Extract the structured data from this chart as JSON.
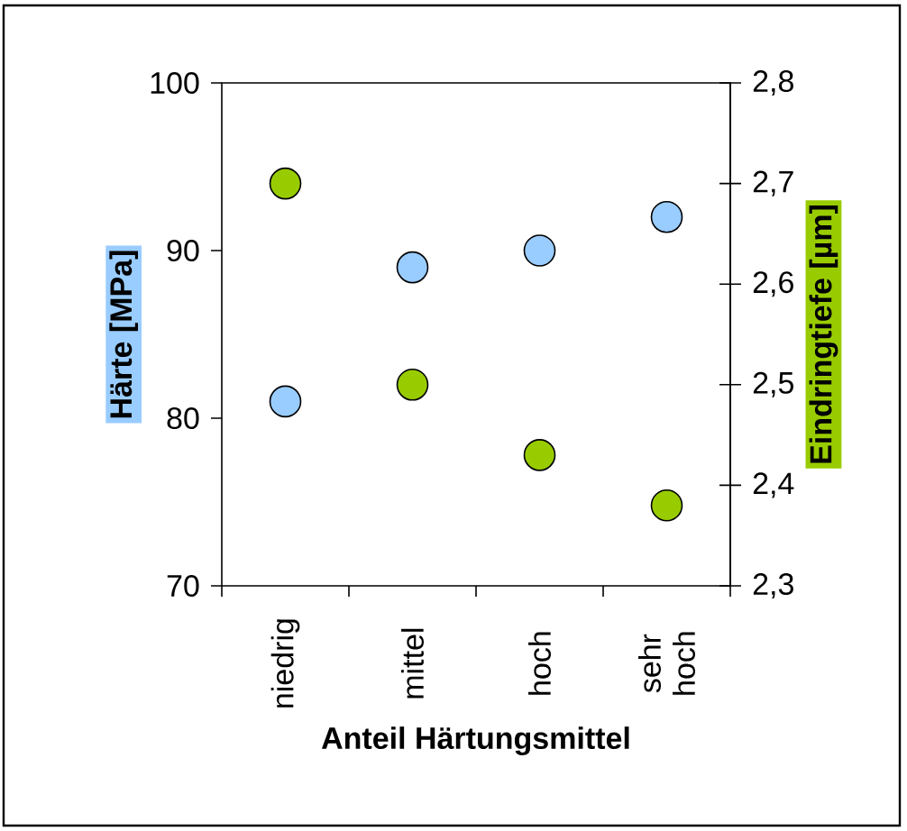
{
  "chart_data": {
    "type": "scatter",
    "xlabel": "Anteil Härtungsmittel",
    "ylabel": "Härte [MPa]",
    "y2label": "Eindringtiefe [µm]",
    "categories": [
      "niedrig",
      "mittel",
      "hoch",
      "sehr hoch"
    ],
    "marker": "circle",
    "series": [
      {
        "color": "#99ccff",
        "values": [
          81,
          89,
          90,
          92
        ]
      },
      {
        "color": "#99cc00",
        "axis": "y2",
        "values": [
          2.7,
          2.5,
          2.43,
          2.38
        ]
      }
    ],
    "ylim": [
      70,
      100
    ],
    "yticks": [
      70,
      80,
      90,
      100
    ],
    "y2lim": [
      2.3,
      2.8
    ],
    "y2ticks": [
      {
        "value": 2.3,
        "label": "2,3"
      },
      {
        "value": 2.4,
        "label": "2,4"
      },
      {
        "value": 2.5,
        "label": "2,5"
      },
      {
        "value": 2.6,
        "label": "2,6"
      },
      {
        "value": 2.7,
        "label": "2,7"
      },
      {
        "value": 2.8,
        "label": "2,8"
      }
    ]
  }
}
